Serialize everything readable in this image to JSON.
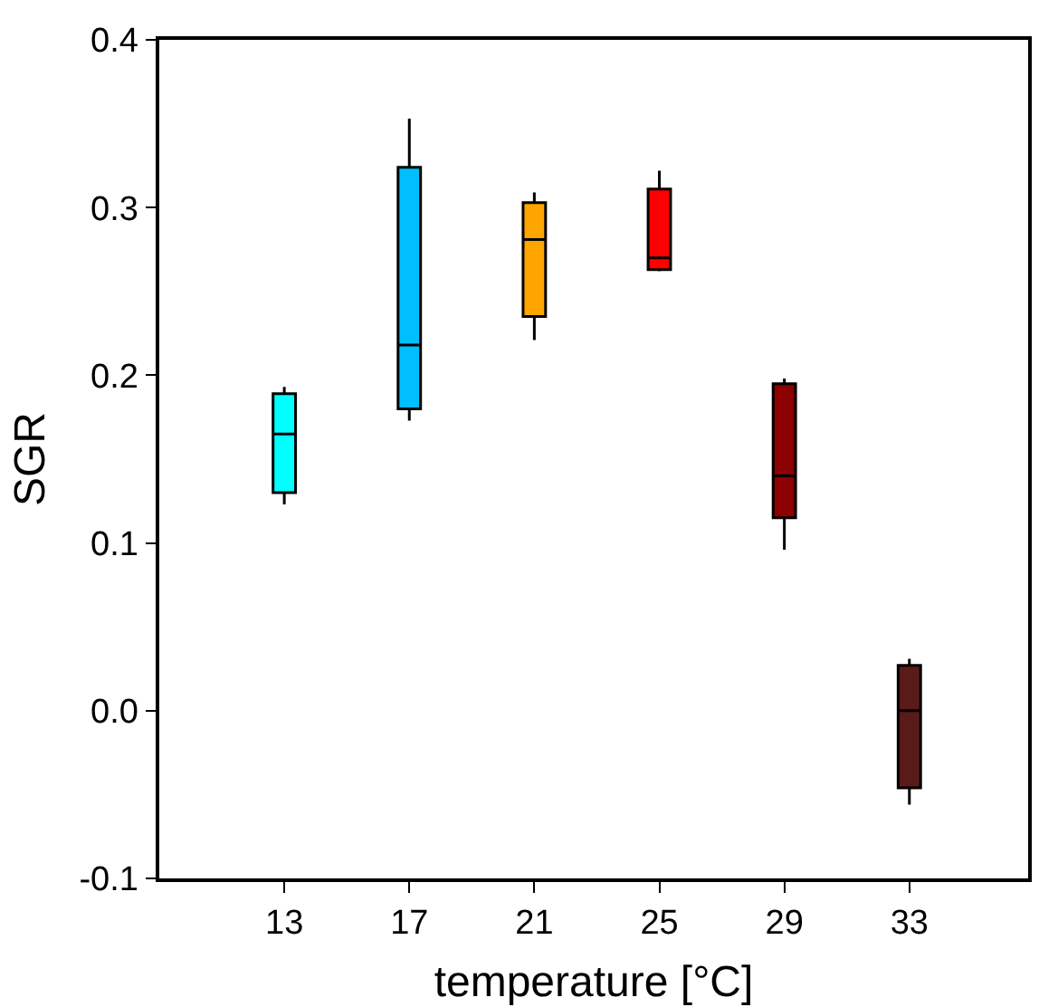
{
  "chart_data": {
    "type": "box",
    "xlabel": "temperature [°C]",
    "ylabel": "SGR",
    "categories": [
      "13",
      "17",
      "21",
      "25",
      "29",
      "33"
    ],
    "boxes": [
      {
        "low": 0.123,
        "q1": 0.13,
        "median": 0.165,
        "q3": 0.189,
        "high": 0.193
      },
      {
        "low": 0.173,
        "q1": 0.18,
        "median": 0.218,
        "q3": 0.324,
        "high": 0.353
      },
      {
        "low": 0.221,
        "q1": 0.235,
        "median": 0.281,
        "q3": 0.303,
        "high": 0.309
      },
      {
        "low": 0.262,
        "q1": 0.263,
        "median": 0.27,
        "q3": 0.311,
        "high": 0.322
      },
      {
        "low": 0.096,
        "q1": 0.115,
        "median": 0.14,
        "q3": 0.195,
        "high": 0.198
      },
      {
        "low": -0.056,
        "q1": -0.046,
        "median": 0.0,
        "q3": 0.027,
        "high": 0.031
      }
    ],
    "colors": [
      "#00ffff",
      "#00bfff",
      "#ffa500",
      "#ff0000",
      "#8b0000",
      "#5a1a1a"
    ],
    "ylim": [
      -0.1,
      0.4
    ],
    "yticks": [
      {
        "value": -0.1,
        "label": "-0.1"
      },
      {
        "value": 0,
        "label": "0.0"
      },
      {
        "value": 0.1,
        "label": "0.1"
      },
      {
        "value": 0.2,
        "label": "0.2"
      },
      {
        "value": 0.3,
        "label": "0.3"
      },
      {
        "value": 0.4,
        "label": "0.4"
      }
    ]
  }
}
